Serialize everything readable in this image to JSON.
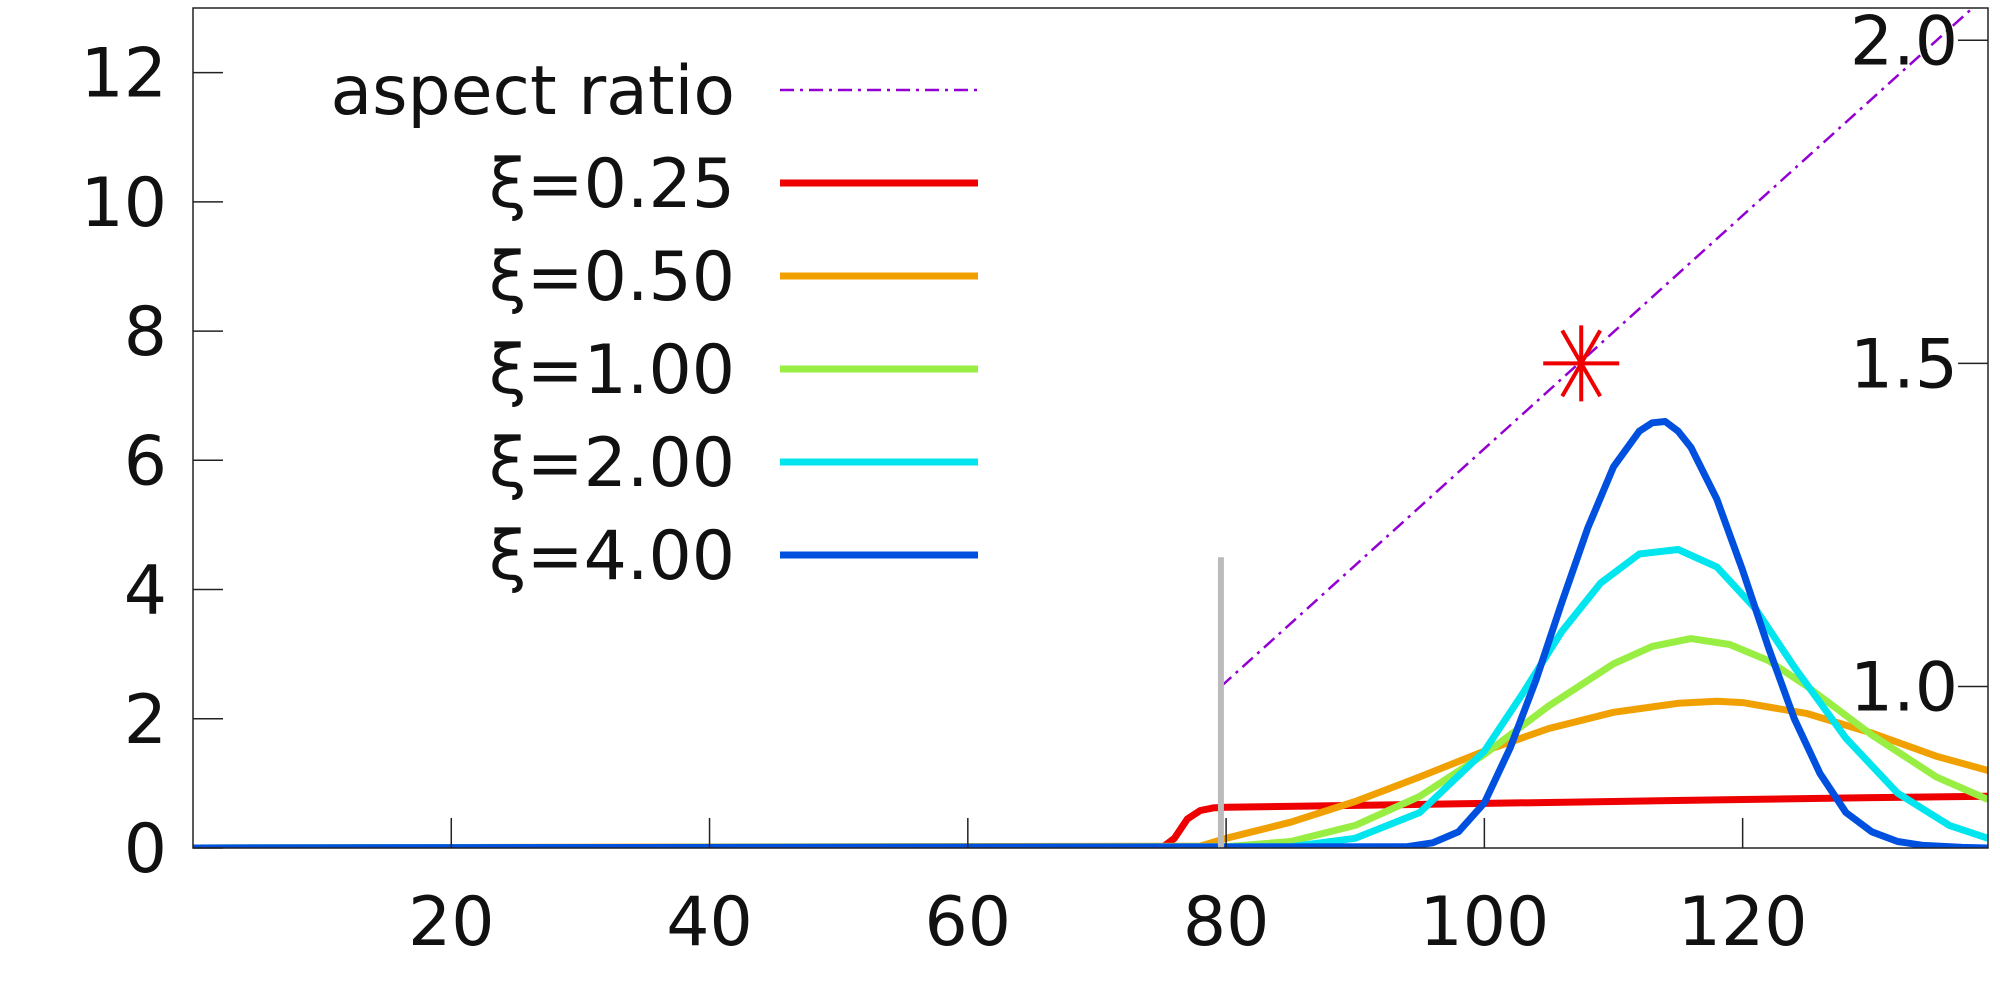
{
  "chart_data": {
    "type": "line",
    "title": "",
    "xlabel": "",
    "ylabel": "",
    "xlim": [
      0,
      139
    ],
    "ylim": [
      0,
      13
    ],
    "y2lim": [
      0.75,
      2.05
    ],
    "x_ticks": [
      20,
      40,
      60,
      80,
      100,
      120
    ],
    "y_ticks": [
      0,
      2,
      4,
      6,
      8,
      10,
      12
    ],
    "y2_ticks": [
      {
        "value": 1.0,
        "label": "1.0"
      },
      {
        "value": 1.5,
        "label": "1.5"
      },
      {
        "value": 2.0,
        "label": "2.0"
      }
    ],
    "grid": false,
    "legend_position": "top-left",
    "colors": {
      "aspect": "#9400d3",
      "xi025": "#ee0000",
      "xi050": "#f0a000",
      "xi100": "#99ee44",
      "xi200": "#00e5ee",
      "xi400": "#0050e0",
      "marker": "#ee0000",
      "vline": "#bbbbbb"
    },
    "series": [
      {
        "name": "aspect ratio",
        "axis": "y2",
        "style": "dash-dot",
        "color": "#9400d3",
        "x": [
          79.6,
          137.8
        ],
        "y": [
          1.0,
          2.05
        ]
      },
      {
        "name": "ξ=0.25",
        "color": "#ee0000",
        "x": [
          0,
          75,
          76,
          77,
          78,
          79,
          80,
          90,
          100,
          110,
          120,
          130,
          139
        ],
        "y": [
          0,
          0,
          0.15,
          0.45,
          0.58,
          0.62,
          0.63,
          0.66,
          0.69,
          0.72,
          0.75,
          0.78,
          0.8
        ]
      },
      {
        "name": "ξ=0.50",
        "color": "#f0a000",
        "x": [
          0,
          78,
          80,
          85,
          90,
          95,
          100,
          105,
          110,
          115,
          118,
          120,
          125,
          130,
          135,
          139
        ],
        "y": [
          0,
          0.03,
          0.15,
          0.4,
          0.72,
          1.1,
          1.5,
          1.85,
          2.1,
          2.24,
          2.27,
          2.25,
          2.08,
          1.78,
          1.42,
          1.2
        ]
      },
      {
        "name": "ξ=1.00",
        "color": "#99ee44",
        "x": [
          0,
          80,
          85,
          90,
          95,
          100,
          105,
          110,
          113,
          116,
          119,
          122,
          125,
          130,
          135,
          139
        ],
        "y": [
          0,
          0.02,
          0.1,
          0.35,
          0.8,
          1.45,
          2.2,
          2.85,
          3.12,
          3.24,
          3.15,
          2.9,
          2.5,
          1.75,
          1.1,
          0.75
        ]
      },
      {
        "name": "ξ=2.00",
        "color": "#00e5ee",
        "x": [
          0,
          85,
          90,
          95,
          100,
          103,
          106,
          109,
          112,
          115,
          118,
          121,
          124,
          128,
          132,
          136,
          139
        ],
        "y": [
          0,
          0.02,
          0.15,
          0.55,
          1.5,
          2.4,
          3.35,
          4.1,
          4.55,
          4.62,
          4.35,
          3.7,
          2.8,
          1.7,
          0.85,
          0.35,
          0.15
        ]
      },
      {
        "name": "ξ=4.00",
        "color": "#0050e0",
        "x": [
          0,
          94,
          96,
          98,
          100,
          102,
          104,
          106,
          108,
          110,
          112,
          113,
          114,
          115,
          116,
          118,
          120,
          122,
          124,
          126,
          128,
          130,
          132,
          134,
          137,
          139
        ],
        "y": [
          0,
          0.02,
          0.08,
          0.25,
          0.7,
          1.55,
          2.6,
          3.8,
          4.95,
          5.9,
          6.45,
          6.58,
          6.6,
          6.45,
          6.2,
          5.4,
          4.3,
          3.1,
          2.0,
          1.15,
          0.55,
          0.25,
          0.1,
          0.04,
          0.01,
          0.0
        ]
      }
    ],
    "marker": {
      "shape": "asterisk",
      "axis": "y2",
      "x": 107.5,
      "y": 1.5,
      "color": "#ee0000"
    },
    "vline": {
      "x": 79.6,
      "y0": 0,
      "y1": 4.5,
      "color": "#bbbbbb"
    }
  }
}
